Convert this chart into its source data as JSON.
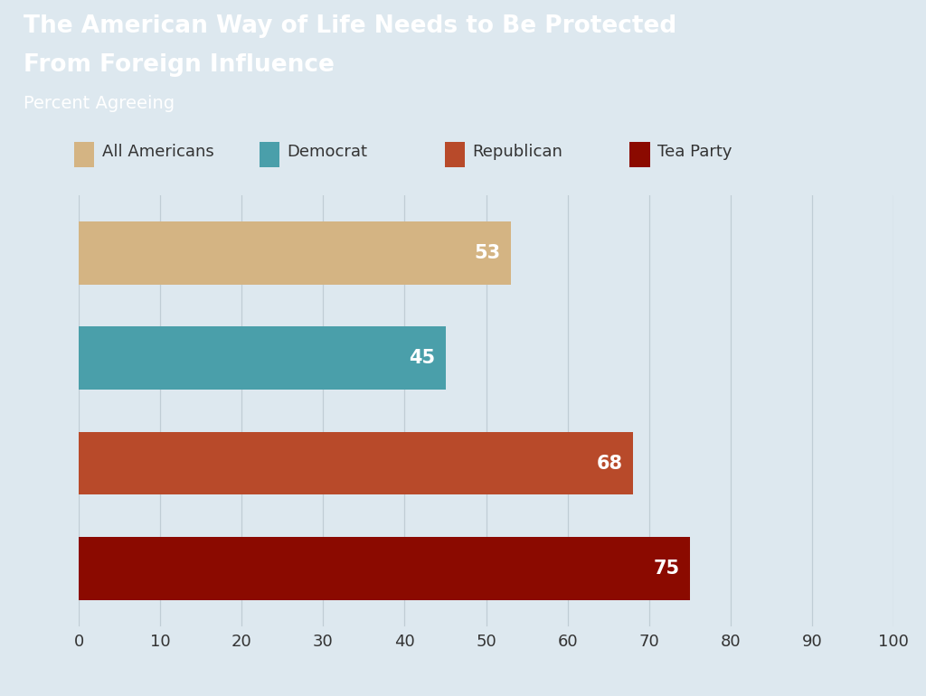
{
  "title_line1": "The American Way of Life Needs to Be Protected",
  "title_line2": "From Foreign Influence",
  "subtitle": "Percent Agreeing",
  "header_bg_color": "#2a8a8c",
  "chart_bg_color": "#dde8ef",
  "categories": [
    "All Americans",
    "Democrat",
    "Republican",
    "Tea Party"
  ],
  "values": [
    53,
    45,
    68,
    75
  ],
  "bar_colors": [
    "#d4b483",
    "#4a9faa",
    "#b84a2a",
    "#8b0a00"
  ],
  "label_color": "#ffffff",
  "xlim": [
    0,
    100
  ],
  "xticks": [
    0,
    10,
    20,
    30,
    40,
    50,
    60,
    70,
    80,
    90,
    100
  ],
  "grid_color": "#c0cdd5",
  "bar_height": 0.6,
  "title_fontsize": 19,
  "subtitle_fontsize": 14,
  "legend_fontsize": 13,
  "tick_fontsize": 13,
  "value_fontsize": 15
}
